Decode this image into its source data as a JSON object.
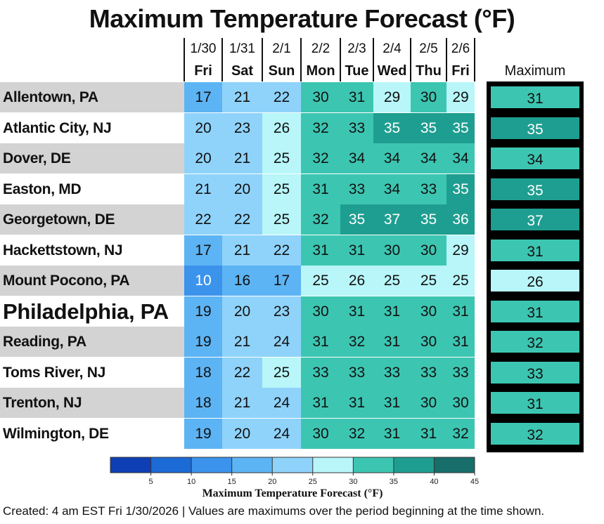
{
  "chart_data": {
    "type": "heatmap",
    "title": "Maximum Temperature Forecast (°F)",
    "columns": [
      {
        "date": "1/30",
        "day": "Fri"
      },
      {
        "date": "1/31",
        "day": "Sat"
      },
      {
        "date": "2/1",
        "day": "Sun"
      },
      {
        "date": "2/2",
        "day": "Mon"
      },
      {
        "date": "2/3",
        "day": "Tue"
      },
      {
        "date": "2/4",
        "day": "Wed"
      },
      {
        "date": "2/5",
        "day": "Thu"
      },
      {
        "date": "2/6",
        "day": "Fri"
      }
    ],
    "max_column_label": "Maximum",
    "rows": [
      {
        "name": "Allentown, PA",
        "values": [
          17,
          21,
          22,
          30,
          31,
          29,
          30,
          29
        ],
        "max": 31
      },
      {
        "name": "Atlantic City, NJ",
        "values": [
          20,
          23,
          26,
          32,
          33,
          35,
          35,
          35
        ],
        "max": 35
      },
      {
        "name": "Dover, DE",
        "values": [
          20,
          21,
          25,
          32,
          34,
          34,
          34,
          34
        ],
        "max": 34
      },
      {
        "name": "Easton, MD",
        "values": [
          21,
          20,
          25,
          31,
          33,
          34,
          33,
          35
        ],
        "max": 35
      },
      {
        "name": "Georgetown, DE",
        "values": [
          22,
          22,
          25,
          32,
          35,
          37,
          35,
          36
        ],
        "max": 37
      },
      {
        "name": "Hackettstown, NJ",
        "values": [
          17,
          21,
          22,
          31,
          31,
          30,
          30,
          29
        ],
        "max": 31
      },
      {
        "name": "Mount Pocono, PA",
        "values": [
          10,
          16,
          17,
          25,
          26,
          25,
          25,
          25
        ],
        "max": 26
      },
      {
        "name": "Philadelphia, PA",
        "values": [
          19,
          20,
          23,
          30,
          31,
          31,
          30,
          31
        ],
        "max": 31
      },
      {
        "name": "Reading, PA",
        "values": [
          19,
          21,
          24,
          31,
          32,
          31,
          30,
          31
        ],
        "max": 32
      },
      {
        "name": "Toms River, NJ",
        "values": [
          18,
          22,
          25,
          33,
          33,
          33,
          33,
          33
        ],
        "max": 33
      },
      {
        "name": "Trenton, NJ",
        "values": [
          18,
          21,
          24,
          31,
          31,
          31,
          30,
          30
        ],
        "max": 31
      },
      {
        "name": "Wilmington, DE",
        "values": [
          19,
          20,
          24,
          30,
          32,
          31,
          31,
          32
        ],
        "max": 32
      }
    ],
    "highlight_row": "Philadelphia, PA",
    "colorbar": {
      "title": "Maximum Temperature Forecast (°F)",
      "ticks": [
        5,
        10,
        15,
        20,
        25,
        30,
        35,
        40,
        45
      ],
      "range": [
        0,
        45
      ],
      "colors": [
        {
          "from": 0,
          "to": 5,
          "color": "#0f3fb5"
        },
        {
          "from": 5,
          "to": 10,
          "color": "#1c6ad6"
        },
        {
          "from": 10,
          "to": 15,
          "color": "#3b93ec"
        },
        {
          "from": 15,
          "to": 20,
          "color": "#5db4f4"
        },
        {
          "from": 20,
          "to": 25,
          "color": "#8fd3fb"
        },
        {
          "from": 25,
          "to": 30,
          "color": "#b8f6f9"
        },
        {
          "from": 30,
          "to": 35,
          "color": "#3cc6b2"
        },
        {
          "from": 35,
          "to": 40,
          "color": "#1e9e90"
        },
        {
          "from": 40,
          "to": 45,
          "color": "#176e6b"
        }
      ]
    }
  },
  "footer": "Created: 4 am EST Fri 1/30/2026  |  Values are maximums over the period beginning at the time shown."
}
